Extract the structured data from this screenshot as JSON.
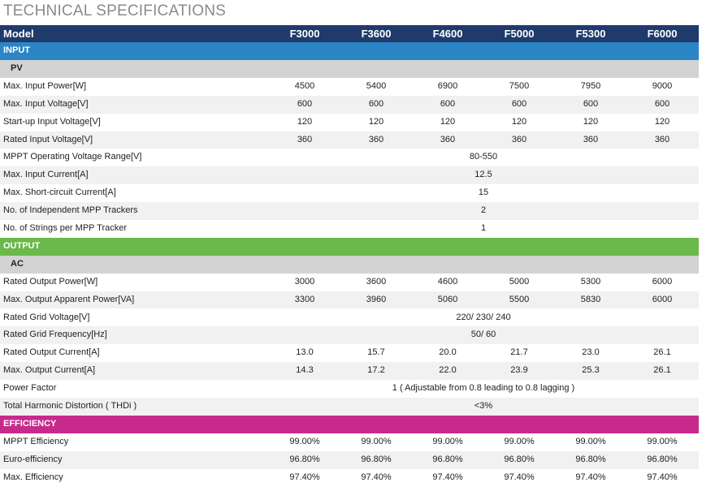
{
  "header": {
    "title": "TECHNICAL SPECIFICATIONS"
  },
  "table": {
    "columns": [
      "Model",
      "F3000",
      "F3600",
      "F4600",
      "F5000",
      "F5300",
      "F6000"
    ],
    "sections": [
      {
        "title": "INPUT",
        "subtitle": "PV",
        "rows": [
          {
            "label": "Max. Input Power[W]",
            "values": [
              "4500",
              "5400",
              "6900",
              "7500",
              "7950",
              "9000"
            ]
          },
          {
            "label": "Max. Input Voltage[V]",
            "values": [
              "600",
              "600",
              "600",
              "600",
              "600",
              "600"
            ]
          },
          {
            "label": "Start-up Input Voltage[V]",
            "values": [
              "120",
              "120",
              "120",
              "120",
              "120",
              "120"
            ]
          },
          {
            "label": "Rated Input Voltage[V]",
            "values": [
              "360",
              "360",
              "360",
              "360",
              "360",
              "360"
            ]
          },
          {
            "label": "MPPT Operating Voltage Range[V]",
            "value": "80-550"
          },
          {
            "label": "Max. Input Current[A]",
            "value": "12.5"
          },
          {
            "label": "Max. Short-circuit Current[A]",
            "value": "15"
          },
          {
            "label": "No. of Independent MPP Trackers",
            "value": "2"
          },
          {
            "label": "No. of Strings per MPP Tracker",
            "value": "1"
          }
        ]
      },
      {
        "title": "OUTPUT",
        "subtitle": "AC",
        "rows": [
          {
            "label": "Rated Output Power[W]",
            "values": [
              "3000",
              "3600",
              "4600",
              "5000",
              "5300",
              "6000"
            ]
          },
          {
            "label": "Max. Output Apparent Power[VA]",
            "values": [
              "3300",
              "3960",
              "5060",
              "5500",
              "5830",
              "6000"
            ]
          },
          {
            "label": "Rated Grid Voltage[V]",
            "value": "220/ 230/ 240"
          },
          {
            "label": "Rated Grid Frequency[Hz]",
            "value": "50/ 60"
          },
          {
            "label": "Rated Output Current[A]",
            "values": [
              "13.0",
              "15.7",
              "20.0",
              "21.7",
              "23.0",
              "26.1"
            ]
          },
          {
            "label": "Max. Output Current[A]",
            "values": [
              "14.3",
              "17.2",
              "22.0",
              "23.9",
              "25.3",
              "26.1"
            ]
          },
          {
            "label": "Power Factor",
            "value": "1 ( Adjustable from 0.8 leading to 0.8 lagging )"
          },
          {
            "label": "Total Harmonic Distortion ( THDi )",
            "value": "<3%"
          }
        ]
      },
      {
        "title": "EFFICIENCY",
        "rows": [
          {
            "label": "MPPT Efficiency",
            "values": [
              "99.00%",
              "99.00%",
              "99.00%",
              "99.00%",
              "99.00%",
              "99.00%"
            ]
          },
          {
            "label": "Euro-efficiency",
            "values": [
              "96.80%",
              "96.80%",
              "96.80%",
              "96.80%",
              "96.80%",
              "96.80%"
            ]
          },
          {
            "label": "Max. Efficiency",
            "values": [
              "97.40%",
              "97.40%",
              "97.40%",
              "97.40%",
              "97.40%",
              "97.40%"
            ]
          }
        ]
      }
    ]
  }
}
